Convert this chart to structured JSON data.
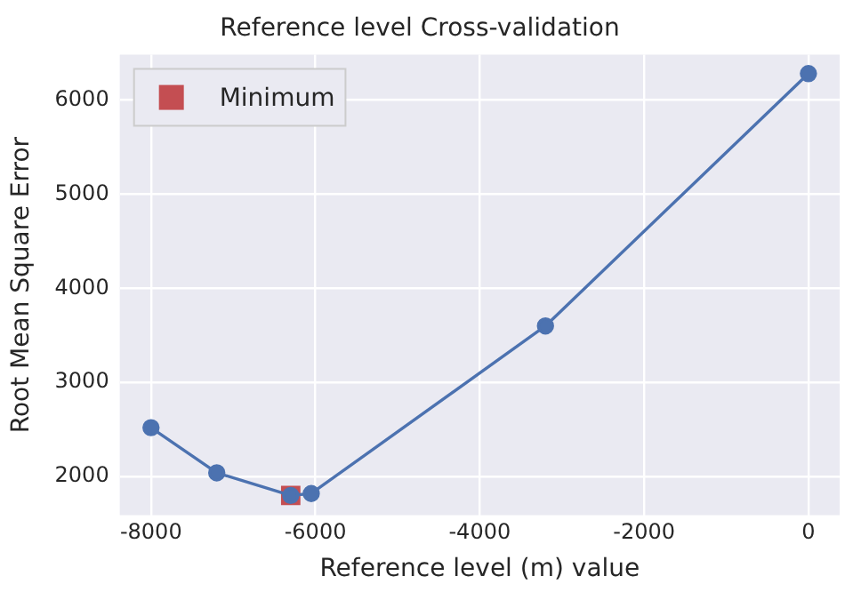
{
  "chart_data": {
    "type": "line",
    "title": "Reference level Cross-validation",
    "xlabel": "Reference level (m) value",
    "ylabel": "Root Mean Square Error",
    "x": [
      -8000,
      -7200,
      -6300,
      -6050,
      -3200,
      0
    ],
    "series": [
      {
        "color": "#4c72b0",
        "values": [
          2520,
          2040,
          1800,
          1820,
          3600,
          6280
        ],
        "marker": "circle"
      },
      {
        "name": "Minimum",
        "type": "scatter",
        "color": "#c44e52",
        "x": [
          -6300
        ],
        "values": [
          1800
        ],
        "marker": "square"
      }
    ],
    "xlim": [
      -8380,
      380
    ],
    "xticks": [
      -8000,
      -6000,
      -4000,
      -2000,
      0
    ],
    "ylim": [
      1590,
      6480
    ],
    "yticks": [
      2000,
      3000,
      4000,
      5000,
      6000
    ],
    "grid": true,
    "legend": "top left"
  }
}
